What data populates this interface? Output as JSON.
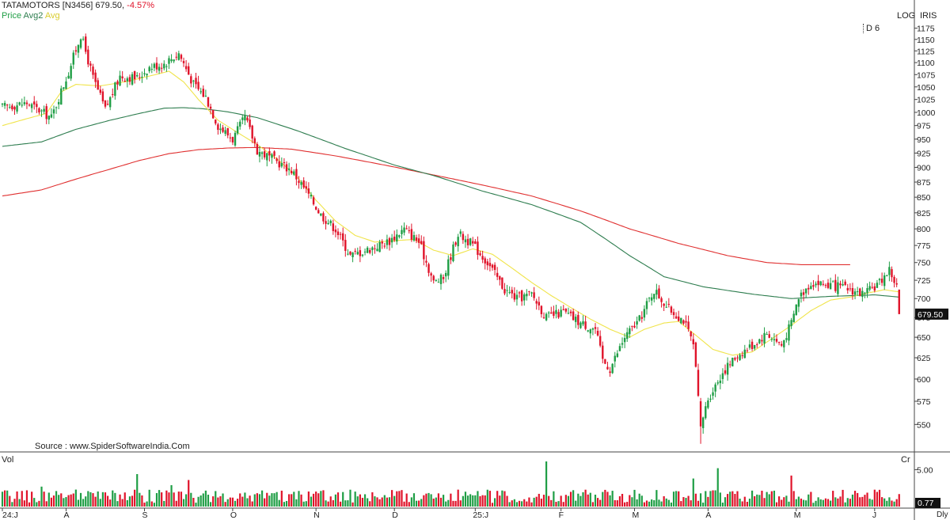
{
  "header": {
    "symbol": "TATAMOTORS [N3456]",
    "last_price": "679.50,",
    "change": "-4.57%",
    "legend_price": "Price",
    "legend_avg2": "Avg2",
    "legend_avg": "Avg",
    "scale_mode": "LOG",
    "theme": "IRIS",
    "period_badge": "D 6",
    "source": "Source : www.SpiderSoftwareIndia.Com",
    "volume_label": "Vol",
    "volume_unit": "Cr",
    "interval": "Dly"
  },
  "colors": {
    "up": "#1f9e45",
    "down": "#e0132a",
    "avg_fast": "#f0e44a",
    "avg_mid": "#2e7d4f",
    "avg_slow": "#e03030",
    "header_name": "#222222",
    "header_change": "#e0132a",
    "legend_price": "#1f9e45",
    "legend_avg2": "#2e7d4f",
    "legend_avg": "#f0e44a"
  },
  "chart_data": [
    {
      "type": "candlestick",
      "scale": "log",
      "ylim": [
        525,
        1185
      ],
      "y_ticks": [
        550,
        575,
        600,
        625,
        650,
        675,
        700,
        725,
        750,
        775,
        800,
        825,
        850,
        875,
        900,
        925,
        950,
        975,
        1000,
        1025,
        1050,
        1075,
        1100,
        1125,
        1150,
        1175
      ],
      "x_tick_labels": [
        "24:J",
        "A",
        "S",
        "O",
        "N",
        "D",
        "25:J",
        "F",
        "M",
        "A",
        "M",
        "J"
      ],
      "last_value_label": "679.50",
      "close_anchors": [
        [
          0,
          1010
        ],
        [
          10,
          1018
        ],
        [
          20,
          990
        ],
        [
          27,
          1080
        ],
        [
          32,
          1160
        ],
        [
          37,
          1068
        ],
        [
          42,
          1005
        ],
        [
          48,
          1072
        ],
        [
          55,
          1068
        ],
        [
          60,
          1090
        ],
        [
          66,
          1098
        ],
        [
          72,
          1120
        ],
        [
          78,
          1055
        ],
        [
          83,
          1030
        ],
        [
          88,
          975
        ],
        [
          94,
          950
        ],
        [
          99,
          990
        ],
        [
          104,
          930
        ],
        [
          110,
          915
        ],
        [
          118,
          895
        ],
        [
          124,
          860
        ],
        [
          130,
          822
        ],
        [
          136,
          800
        ],
        [
          142,
          760
        ],
        [
          150,
          770
        ],
        [
          158,
          782
        ],
        [
          164,
          800
        ],
        [
          170,
          780
        ],
        [
          176,
          722
        ],
        [
          180,
          728
        ],
        [
          186,
          793
        ],
        [
          192,
          776
        ],
        [
          198,
          750
        ],
        [
          205,
          712
        ],
        [
          210,
          700
        ],
        [
          216,
          706
        ],
        [
          222,
          675
        ],
        [
          229,
          682
        ],
        [
          236,
          668
        ],
        [
          242,
          660
        ],
        [
          245,
          622
        ],
        [
          248,
          612
        ],
        [
          254,
          650
        ],
        [
          260,
          672
        ],
        [
          266,
          712
        ],
        [
          272,
          686
        ],
        [
          278,
          672
        ],
        [
          282,
          640
        ],
        [
          285,
          548
        ],
        [
          288,
          578
        ],
        [
          294,
          608
        ],
        [
          300,
          628
        ],
        [
          306,
          640
        ],
        [
          312,
          655
        ],
        [
          318,
          640
        ],
        [
          322,
          668
        ],
        [
          325,
          702
        ],
        [
          330,
          722
        ],
        [
          338,
          718
        ],
        [
          346,
          712
        ],
        [
          352,
          705
        ],
        [
          358,
          722
        ],
        [
          362,
          740
        ],
        [
          365,
          716
        ],
        [
          366,
          679.5
        ]
      ],
      "avg_fast": [
        [
          0,
          975
        ],
        [
          10,
          988
        ],
        [
          18,
          998
        ],
        [
          24,
          1040
        ],
        [
          30,
          1055
        ],
        [
          40,
          1052
        ],
        [
          50,
          1060
        ],
        [
          60,
          1072
        ],
        [
          68,
          1082
        ],
        [
          74,
          1060
        ],
        [
          80,
          1025
        ],
        [
          88,
          985
        ],
        [
          96,
          962
        ],
        [
          104,
          940
        ],
        [
          112,
          915
        ],
        [
          120,
          885
        ],
        [
          128,
          845
        ],
        [
          136,
          812
        ],
        [
          144,
          790
        ],
        [
          152,
          780
        ],
        [
          160,
          782
        ],
        [
          168,
          784
        ],
        [
          176,
          768
        ],
        [
          184,
          760
        ],
        [
          192,
          770
        ],
        [
          200,
          762
        ],
        [
          208,
          742
        ],
        [
          216,
          722
        ],
        [
          224,
          704
        ],
        [
          232,
          688
        ],
        [
          240,
          673
        ],
        [
          248,
          660
        ],
        [
          256,
          650
        ],
        [
          262,
          660
        ],
        [
          266,
          664
        ],
        [
          270,
          668
        ],
        [
          276,
          670
        ],
        [
          282,
          655
        ],
        [
          290,
          635
        ],
        [
          298,
          628
        ],
        [
          306,
          632
        ],
        [
          314,
          648
        ],
        [
          322,
          665
        ],
        [
          330,
          684
        ],
        [
          338,
          698
        ],
        [
          346,
          702
        ],
        [
          354,
          708
        ],
        [
          360,
          712
        ],
        [
          366,
          709
        ]
      ],
      "avg_mid": [
        [
          0,
          937
        ],
        [
          16,
          945
        ],
        [
          30,
          968
        ],
        [
          44,
          985
        ],
        [
          56,
          998
        ],
        [
          66,
          1008
        ],
        [
          74,
          1009
        ],
        [
          82,
          1007
        ],
        [
          92,
          1001
        ],
        [
          104,
          990
        ],
        [
          120,
          966
        ],
        [
          140,
          933
        ],
        [
          160,
          904
        ],
        [
          176,
          886
        ],
        [
          196,
          860
        ],
        [
          216,
          838
        ],
        [
          236,
          810
        ],
        [
          256,
          760
        ],
        [
          270,
          730
        ],
        [
          286,
          716
        ],
        [
          306,
          706
        ],
        [
          322,
          700
        ],
        [
          338,
          703
        ],
        [
          356,
          705
        ],
        [
          366,
          702
        ]
      ],
      "avg_slow": [
        [
          0,
          852
        ],
        [
          16,
          862
        ],
        [
          30,
          880
        ],
        [
          44,
          897
        ],
        [
          56,
          912
        ],
        [
          68,
          924
        ],
        [
          80,
          931
        ],
        [
          92,
          934
        ],
        [
          104,
          935
        ],
        [
          118,
          932
        ],
        [
          136,
          920
        ],
        [
          156,
          904
        ],
        [
          176,
          887
        ],
        [
          196,
          870
        ],
        [
          216,
          852
        ],
        [
          236,
          828
        ],
        [
          256,
          800
        ],
        [
          276,
          778
        ],
        [
          296,
          760
        ],
        [
          312,
          750
        ],
        [
          326,
          747
        ],
        [
          338,
          747
        ],
        [
          346,
          747
        ]
      ]
    },
    {
      "type": "bar",
      "title": "Vol",
      "unit": "Cr",
      "ylim": [
        0,
        5.9
      ],
      "y_ticks": [
        5.0
      ],
      "last_value_label": "0.77",
      "volume_spikes": [
        [
          16,
          2.7
        ],
        [
          22,
          2.1
        ],
        [
          55,
          4.4
        ],
        [
          69,
          2.9
        ],
        [
          76,
          3.6
        ],
        [
          222,
          6.2
        ],
        [
          282,
          3.8
        ],
        [
          292,
          5.2
        ],
        [
          322,
          4.2
        ]
      ]
    }
  ]
}
